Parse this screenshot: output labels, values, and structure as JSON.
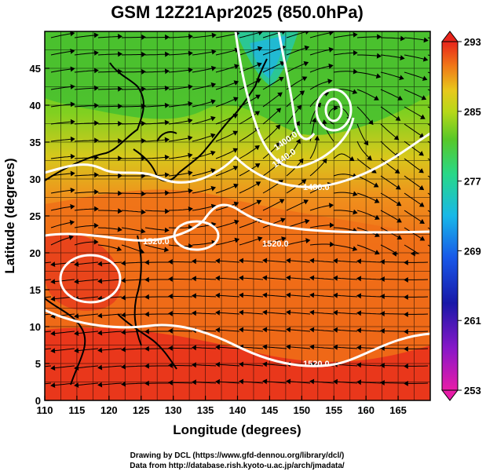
{
  "figure": {
    "title": "GSM 12Z21Apr2025 (850.0hPa)",
    "xlabel": "Longitude (degrees)",
    "ylabel": "Latitude  (degrees)",
    "xticks": [
      "110",
      "115",
      "120",
      "125",
      "130",
      "135",
      "140",
      "145",
      "150",
      "155",
      "160",
      "165"
    ],
    "yticks": [
      "0",
      "5",
      "10",
      "15",
      "20",
      "25",
      "30",
      "35",
      "40",
      "45"
    ],
    "colorbar_ticks": [
      "293",
      "285",
      "277",
      "269",
      "261",
      "253"
    ],
    "contour_labels": [
      "1400.0",
      "1440.0",
      "1480.0",
      "1520.0",
      "1520.0",
      "1520.0"
    ],
    "credit_line1": "Drawing by DCL (https://www.gfd-dennou.org/library/dcl/)",
    "credit_line2": "Data from http://database.rish.kyoto-u.ac.jp/arch/jmadata/"
  },
  "map_data": {
    "lon_range": [
      110,
      170
    ],
    "lat_range": [
      0,
      50
    ],
    "colorbar_range": [
      253,
      293
    ],
    "colors": {
      "warm": "#e8251c",
      "orange": "#f07818",
      "yellow": "#e8c81c",
      "green": "#58c828",
      "cyan": "#1cc8c8",
      "coast": "#000000",
      "contour": "#ffffff"
    }
  }
}
